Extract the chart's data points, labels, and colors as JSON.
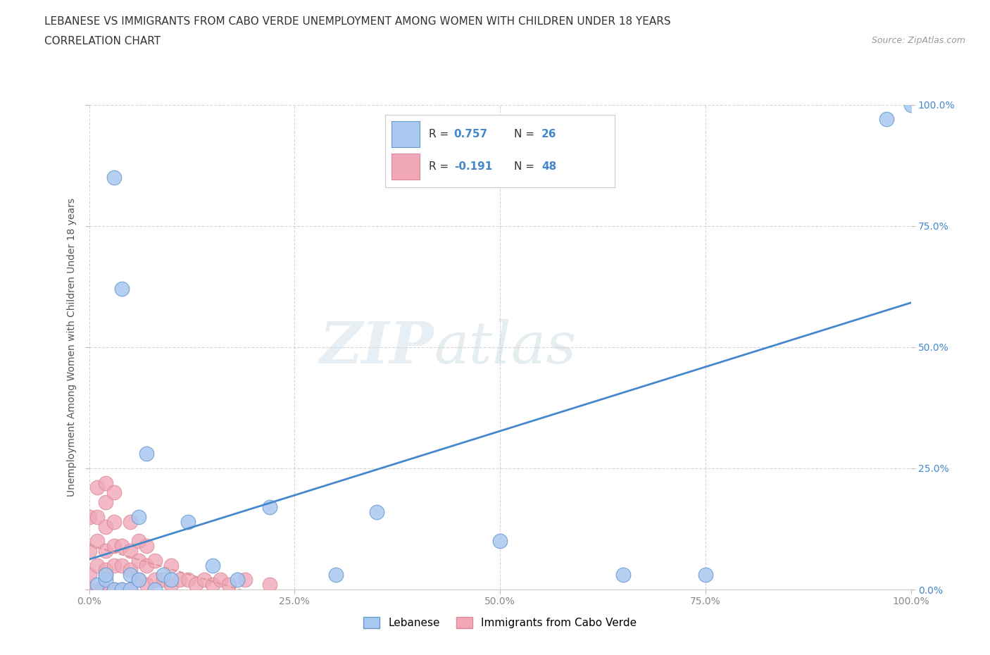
{
  "title_line1": "LEBANESE VS IMMIGRANTS FROM CABO VERDE UNEMPLOYMENT AMONG WOMEN WITH CHILDREN UNDER 18 YEARS",
  "title_line2": "CORRELATION CHART",
  "source_text": "Source: ZipAtlas.com",
  "ylabel": "Unemployment Among Women with Children Under 18 years",
  "watermark_zip": "ZIP",
  "watermark_atlas": "atlas",
  "xlim": [
    0.0,
    1.0
  ],
  "ylim": [
    0.0,
    1.0
  ],
  "lebanese_color": "#a8c8f0",
  "cabo_verde_color": "#f0a8b8",
  "lebanese_edge": "#6699cc",
  "cabo_verde_edge": "#dd8899",
  "lebanese_R": 0.757,
  "lebanese_N": 26,
  "cabo_verde_R": -0.191,
  "cabo_verde_N": 48,
  "lebanese_line_color": "#4488cc",
  "cabo_verde_line_color": "#dd9999",
  "grid_color": "#cccccc",
  "background_color": "#ffffff",
  "title_color": "#333333",
  "axis_label_color": "#555555",
  "tick_color": "#888888",
  "right_tick_color": "#4488cc",
  "leb_x": [
    0.01,
    0.02,
    0.02,
    0.03,
    0.03,
    0.04,
    0.04,
    0.05,
    0.05,
    0.06,
    0.06,
    0.07,
    0.08,
    0.09,
    0.1,
    0.12,
    0.15,
    0.18,
    0.22,
    0.3,
    0.35,
    0.5,
    0.65,
    0.75,
    0.97,
    1.0
  ],
  "leb_y": [
    0.01,
    0.02,
    0.03,
    0.0,
    0.85,
    0.0,
    0.62,
    0.0,
    0.03,
    0.02,
    0.15,
    0.28,
    0.0,
    0.03,
    0.02,
    0.14,
    0.05,
    0.02,
    0.17,
    0.03,
    0.16,
    0.1,
    0.03,
    0.03,
    0.97,
    1.0
  ],
  "cv_x": [
    0.0,
    0.0,
    0.0,
    0.0,
    0.01,
    0.01,
    0.01,
    0.01,
    0.01,
    0.02,
    0.02,
    0.02,
    0.02,
    0.02,
    0.02,
    0.02,
    0.03,
    0.03,
    0.03,
    0.03,
    0.03,
    0.04,
    0.04,
    0.04,
    0.05,
    0.05,
    0.05,
    0.05,
    0.06,
    0.06,
    0.06,
    0.07,
    0.07,
    0.07,
    0.08,
    0.08,
    0.09,
    0.1,
    0.1,
    0.11,
    0.12,
    0.13,
    0.14,
    0.15,
    0.16,
    0.17,
    0.19,
    0.22
  ],
  "cv_y": [
    0.0,
    0.03,
    0.08,
    0.15,
    0.0,
    0.05,
    0.1,
    0.15,
    0.21,
    0.0,
    0.04,
    0.08,
    0.13,
    0.18,
    0.22,
    0.03,
    0.0,
    0.05,
    0.09,
    0.14,
    0.2,
    0.0,
    0.05,
    0.09,
    0.0,
    0.04,
    0.08,
    0.14,
    0.02,
    0.06,
    0.1,
    0.01,
    0.05,
    0.09,
    0.02,
    0.06,
    0.02,
    0.01,
    0.05,
    0.02,
    0.02,
    0.01,
    0.02,
    0.01,
    0.02,
    0.01,
    0.02,
    0.01
  ]
}
